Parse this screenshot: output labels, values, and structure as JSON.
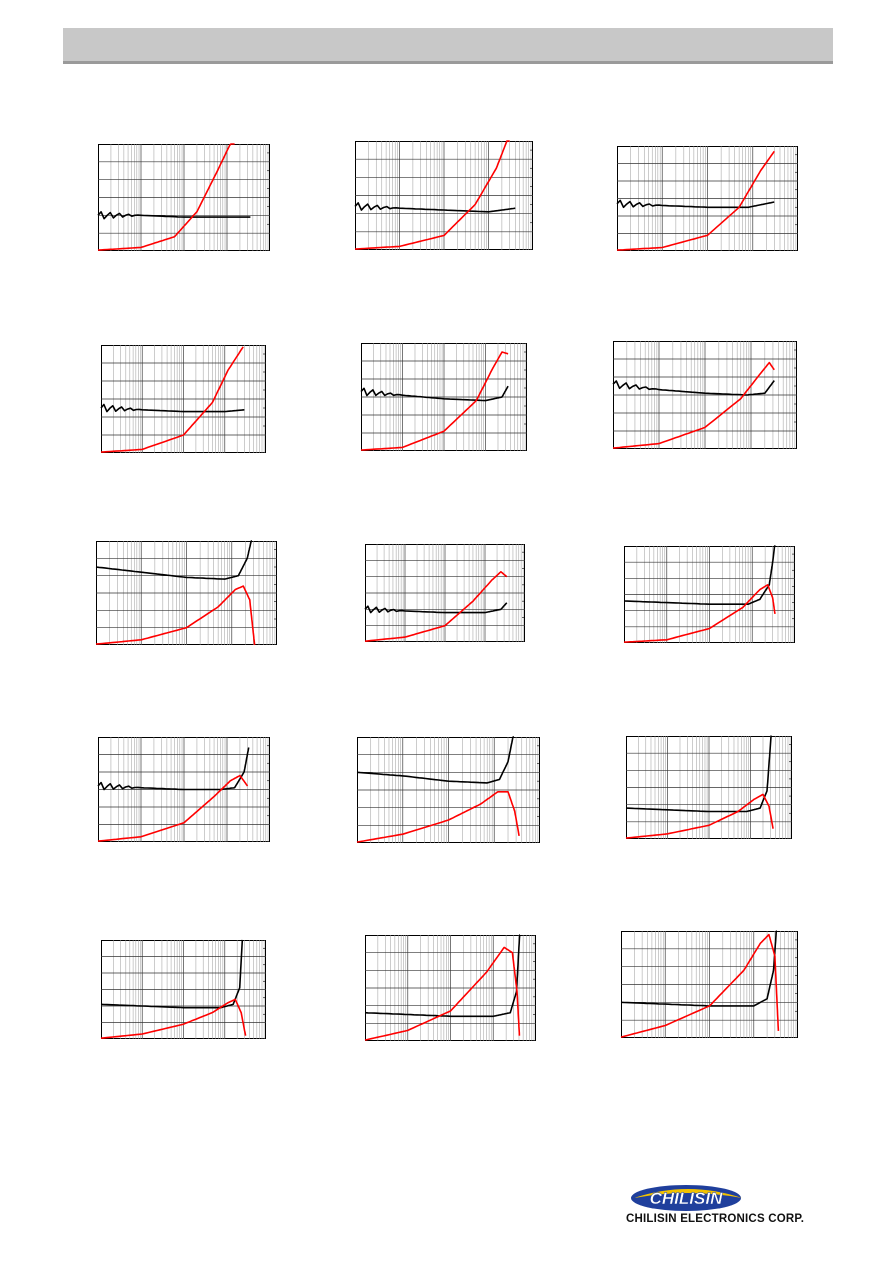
{
  "header": {
    "title": ""
  },
  "footer": {
    "logo_text": "CHILISIN",
    "company_name": "CHILISIN ELECTRONICS CORP."
  },
  "colors": {
    "header_bar": "#c8c8c8",
    "curve_black": "#000000",
    "curve_red": "#ff0000",
    "grid": "#000000"
  },
  "chart_data": [
    {
      "type": "line",
      "xscale": "log",
      "xlim": [
        1,
        10000
      ],
      "ylim": [
        0,
        6
      ],
      "series": [
        {
          "values": [
            [
              1,
              2.0
            ],
            [
              10,
              2.0
            ],
            [
              100,
              1.9
            ],
            [
              1000,
              1.9
            ],
            [
              3500,
              1.9
            ]
          ],
          "osc": true
        },
        {
          "values": [
            [
              1,
              0.05
            ],
            [
              10,
              0.2
            ],
            [
              60,
              0.8
            ],
            [
              200,
              2.2
            ],
            [
              600,
              4.5
            ],
            [
              1500,
              6.5
            ]
          ]
        }
      ]
    },
    {
      "type": "line",
      "xscale": "log",
      "xlim": [
        1,
        10000
      ],
      "ylim": [
        0,
        6
      ],
      "series": [
        {
          "values": [
            [
              1,
              2.4
            ],
            [
              10,
              2.3
            ],
            [
              100,
              2.2
            ],
            [
              1000,
              2.1
            ],
            [
              4000,
              2.3
            ]
          ],
          "osc": true
        },
        {
          "values": [
            [
              1,
              0.05
            ],
            [
              10,
              0.2
            ],
            [
              100,
              0.8
            ],
            [
              500,
              2.5
            ],
            [
              1500,
              4.5
            ],
            [
              3000,
              6.4
            ]
          ]
        }
      ]
    },
    {
      "type": "line",
      "xscale": "log",
      "xlim": [
        1,
        10000
      ],
      "ylim": [
        0,
        6
      ],
      "series": [
        {
          "values": [
            [
              1,
              2.7
            ],
            [
              10,
              2.6
            ],
            [
              100,
              2.5
            ],
            [
              800,
              2.5
            ],
            [
              3000,
              2.8
            ]
          ],
          "osc": true
        },
        {
          "values": [
            [
              1,
              0.05
            ],
            [
              10,
              0.2
            ],
            [
              100,
              0.9
            ],
            [
              500,
              2.5
            ],
            [
              1500,
              4.6
            ],
            [
              3000,
              5.7
            ]
          ]
        }
      ]
    },
    {
      "type": "line",
      "xscale": "log",
      "xlim": [
        1,
        10000
      ],
      "ylim": [
        0,
        6
      ],
      "series": [
        {
          "values": [
            [
              1,
              2.5
            ],
            [
              10,
              2.4
            ],
            [
              100,
              2.3
            ],
            [
              1000,
              2.3
            ],
            [
              3000,
              2.4
            ]
          ],
          "osc": true
        },
        {
          "values": [
            [
              1,
              0.05
            ],
            [
              10,
              0.2
            ],
            [
              100,
              1.0
            ],
            [
              500,
              2.8
            ],
            [
              1200,
              4.6
            ],
            [
              2800,
              5.9
            ]
          ]
        }
      ]
    },
    {
      "type": "line",
      "xscale": "log",
      "xlim": [
        1,
        10000
      ],
      "ylim": [
        0,
        6
      ],
      "series": [
        {
          "values": [
            [
              1,
              3.3
            ],
            [
              10,
              3.1
            ],
            [
              100,
              2.9
            ],
            [
              1000,
              2.8
            ],
            [
              2500,
              3.0
            ],
            [
              3500,
              3.6
            ]
          ],
          "osc": true
        },
        {
          "values": [
            [
              1,
              0.05
            ],
            [
              10,
              0.2
            ],
            [
              100,
              1.1
            ],
            [
              600,
              2.8
            ],
            [
              1500,
              4.6
            ],
            [
              2500,
              5.5
            ],
            [
              3500,
              5.4
            ]
          ]
        }
      ]
    },
    {
      "type": "line",
      "xscale": "log",
      "xlim": [
        1,
        10000
      ],
      "ylim": [
        0,
        6
      ],
      "series": [
        {
          "values": [
            [
              1,
              3.6
            ],
            [
              10,
              3.3
            ],
            [
              100,
              3.1
            ],
            [
              800,
              3.0
            ],
            [
              2000,
              3.1
            ],
            [
              3200,
              3.8
            ]
          ],
          "osc": true
        },
        {
          "values": [
            [
              1,
              0.05
            ],
            [
              10,
              0.3
            ],
            [
              100,
              1.2
            ],
            [
              600,
              2.8
            ],
            [
              1500,
              4.1
            ],
            [
              2500,
              4.8
            ],
            [
              3200,
              4.4
            ]
          ]
        }
      ]
    },
    {
      "type": "line",
      "xscale": "log",
      "xlim": [
        1,
        10000
      ],
      "ylim": [
        0,
        6
      ],
      "series": [
        {
          "values": [
            [
              1,
              4.5
            ],
            [
              10,
              4.2
            ],
            [
              100,
              3.9
            ],
            [
              700,
              3.8
            ],
            [
              1400,
              4.0
            ],
            [
              2200,
              5.0
            ],
            [
              2800,
              6.2
            ]
          ],
          "osc": false
        },
        {
          "values": [
            [
              1,
              0.05
            ],
            [
              10,
              0.3
            ],
            [
              100,
              1.0
            ],
            [
              500,
              2.2
            ],
            [
              1200,
              3.2
            ],
            [
              1800,
              3.4
            ],
            [
              2500,
              2.6
            ],
            [
              3200,
              0.0
            ]
          ]
        }
      ]
    },
    {
      "type": "line",
      "xscale": "log",
      "xlim": [
        1,
        10000
      ],
      "ylim": [
        0,
        6
      ],
      "series": [
        {
          "values": [
            [
              1,
              2.0
            ],
            [
              10,
              1.9
            ],
            [
              100,
              1.8
            ],
            [
              1000,
              1.8
            ],
            [
              2500,
              2.0
            ],
            [
              3500,
              2.4
            ]
          ],
          "osc": true
        },
        {
          "values": [
            [
              1,
              0.05
            ],
            [
              10,
              0.3
            ],
            [
              100,
              1.0
            ],
            [
              500,
              2.5
            ],
            [
              1500,
              3.8
            ],
            [
              2500,
              4.3
            ],
            [
              3500,
              4.0
            ]
          ]
        }
      ]
    },
    {
      "type": "line",
      "xscale": "log",
      "xlim": [
        1,
        10000
      ],
      "ylim": [
        0,
        6
      ],
      "series": [
        {
          "values": [
            [
              1,
              2.6
            ],
            [
              10,
              2.5
            ],
            [
              100,
              2.4
            ],
            [
              800,
              2.4
            ],
            [
              1500,
              2.7
            ],
            [
              2500,
              3.6
            ],
            [
              3000,
              5.0
            ],
            [
              3500,
              6.5
            ]
          ],
          "osc": false
        },
        {
          "values": [
            [
              1,
              0.05
            ],
            [
              10,
              0.2
            ],
            [
              100,
              0.9
            ],
            [
              600,
              2.2
            ],
            [
              1500,
              3.3
            ],
            [
              2300,
              3.6
            ],
            [
              3000,
              2.8
            ],
            [
              3400,
              1.8
            ]
          ]
        }
      ]
    },
    {
      "type": "line",
      "xscale": "log",
      "xlim": [
        1,
        10000
      ],
      "ylim": [
        0,
        6
      ],
      "series": [
        {
          "values": [
            [
              1,
              3.2
            ],
            [
              10,
              3.1
            ],
            [
              100,
              3.0
            ],
            [
              700,
              3.0
            ],
            [
              1500,
              3.1
            ],
            [
              2500,
              4.0
            ],
            [
              3200,
              5.4
            ]
          ],
          "osc": true
        },
        {
          "values": [
            [
              1,
              0.05
            ],
            [
              10,
              0.3
            ],
            [
              100,
              1.1
            ],
            [
              500,
              2.6
            ],
            [
              1200,
              3.5
            ],
            [
              2000,
              3.8
            ],
            [
              3000,
              3.2
            ]
          ]
        }
      ]
    },
    {
      "type": "line",
      "xscale": "log",
      "xlim": [
        1,
        10000
      ],
      "ylim": [
        0,
        6
      ],
      "series": [
        {
          "values": [
            [
              1,
              4.0
            ],
            [
              10,
              3.8
            ],
            [
              100,
              3.5
            ],
            [
              700,
              3.4
            ],
            [
              1300,
              3.6
            ],
            [
              2000,
              4.6
            ],
            [
              2700,
              6.3
            ]
          ],
          "osc": false
        },
        {
          "values": [
            [
              1,
              0.05
            ],
            [
              10,
              0.5
            ],
            [
              100,
              1.3
            ],
            [
              500,
              2.2
            ],
            [
              1200,
              2.9
            ],
            [
              2000,
              2.9
            ],
            [
              2800,
              1.8
            ],
            [
              3500,
              0.4
            ]
          ]
        }
      ]
    },
    {
      "type": "line",
      "xscale": "log",
      "xlim": [
        1,
        10000
      ],
      "ylim": [
        0,
        6
      ],
      "series": [
        {
          "values": [
            [
              1,
              1.8
            ],
            [
              10,
              1.7
            ],
            [
              100,
              1.6
            ],
            [
              800,
              1.6
            ],
            [
              1700,
              1.8
            ],
            [
              2500,
              2.8
            ],
            [
              3200,
              6.3
            ]
          ],
          "osc": false
        },
        {
          "values": [
            [
              1,
              0.05
            ],
            [
              10,
              0.3
            ],
            [
              100,
              0.8
            ],
            [
              500,
              1.6
            ],
            [
              1200,
              2.3
            ],
            [
              2000,
              2.6
            ],
            [
              2800,
              1.9
            ],
            [
              3500,
              0.6
            ]
          ]
        }
      ]
    },
    {
      "type": "line",
      "xscale": "log",
      "xlim": [
        1,
        10000
      ],
      "ylim": [
        0,
        6
      ],
      "series": [
        {
          "values": [
            [
              1,
              2.1
            ],
            [
              10,
              2.0
            ],
            [
              100,
              1.9
            ],
            [
              800,
              1.9
            ],
            [
              1600,
              2.1
            ],
            [
              2300,
              3.1
            ],
            [
              2700,
              6.2
            ]
          ],
          "osc": false
        },
        {
          "values": [
            [
              1,
              0.05
            ],
            [
              10,
              0.3
            ],
            [
              100,
              0.9
            ],
            [
              500,
              1.6
            ],
            [
              1200,
              2.2
            ],
            [
              1800,
              2.4
            ],
            [
              2500,
              1.6
            ],
            [
              3200,
              0.2
            ]
          ]
        }
      ]
    },
    {
      "type": "line",
      "xscale": "log",
      "xlim": [
        1,
        10000
      ],
      "ylim": [
        0,
        6
      ],
      "series": [
        {
          "values": [
            [
              1,
              1.6
            ],
            [
              10,
              1.5
            ],
            [
              100,
              1.4
            ],
            [
              1000,
              1.4
            ],
            [
              2500,
              1.6
            ],
            [
              3500,
              2.8
            ],
            [
              4200,
              6.3
            ]
          ],
          "osc": false
        },
        {
          "values": [
            [
              1,
              0.05
            ],
            [
              10,
              0.6
            ],
            [
              100,
              1.7
            ],
            [
              700,
              3.9
            ],
            [
              1800,
              5.3
            ],
            [
              2800,
              5.0
            ],
            [
              3600,
              2.8
            ],
            [
              4100,
              0.3
            ]
          ]
        }
      ]
    },
    {
      "type": "line",
      "xscale": "log",
      "xlim": [
        1,
        10000
      ],
      "ylim": [
        0,
        6
      ],
      "series": [
        {
          "values": [
            [
              1,
              2.0
            ],
            [
              10,
              1.9
            ],
            [
              100,
              1.8
            ],
            [
              1000,
              1.8
            ],
            [
              2000,
              2.2
            ],
            [
              2800,
              3.8
            ],
            [
              3300,
              6.3
            ]
          ],
          "osc": false
        },
        {
          "values": [
            [
              1,
              0.05
            ],
            [
              10,
              0.7
            ],
            [
              100,
              1.8
            ],
            [
              600,
              3.8
            ],
            [
              1400,
              5.3
            ],
            [
              2200,
              5.8
            ],
            [
              3000,
              4.6
            ],
            [
              3600,
              0.4
            ]
          ]
        }
      ]
    }
  ]
}
